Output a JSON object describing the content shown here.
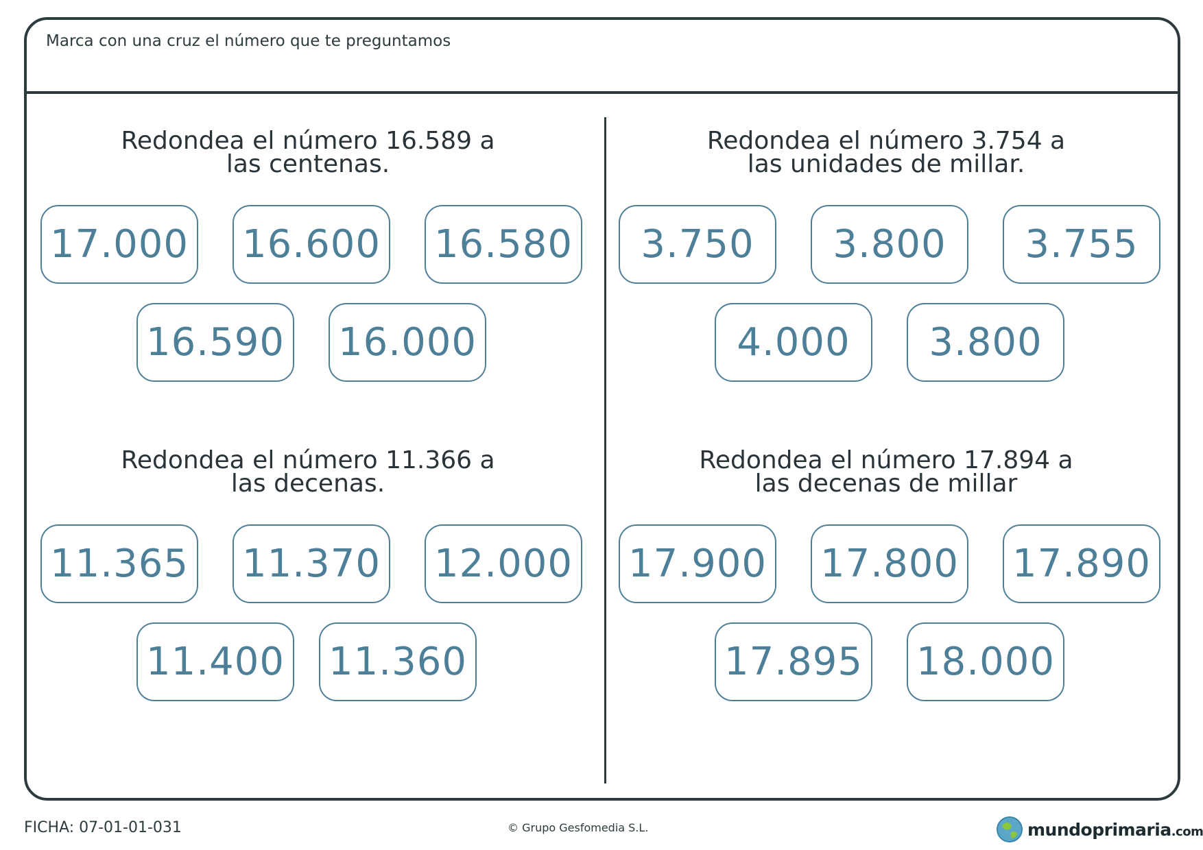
{
  "instruction": "Marca con una cruz el número que te preguntamos",
  "exercises": [
    {
      "title_line1": "Redondea el número 16.589 a",
      "title_line2": "las centenas.",
      "options": [
        "17.000",
        "16.600",
        "16.580",
        "16.590",
        "16.000"
      ]
    },
    {
      "title_line1": "Redondea el número 3.754 a",
      "title_line2": "las unidades de millar.",
      "options": [
        "3.750",
        "3.800",
        "3.755",
        "4.000",
        "3.800"
      ]
    },
    {
      "title_line1": "Redondea el número 11.366 a",
      "title_line2": "las decenas.",
      "options": [
        "11.365",
        "11.370",
        "12.000",
        "11.400",
        "11.360"
      ]
    },
    {
      "title_line1": "Redondea el número 17.894 a",
      "title_line2": "las decenas de millar",
      "options": [
        "17.900",
        "17.800",
        "17.890",
        "17.895",
        "18.000"
      ]
    }
  ],
  "footer": {
    "code": "FICHA: 07-01-01-031",
    "copyright": "© Grupo Gesfomedia S.L.",
    "logo_main": "mundoprimaria",
    "logo_suffix": ".com"
  },
  "colors": {
    "border": "#2d3b3f",
    "option": "#4e7f99"
  }
}
